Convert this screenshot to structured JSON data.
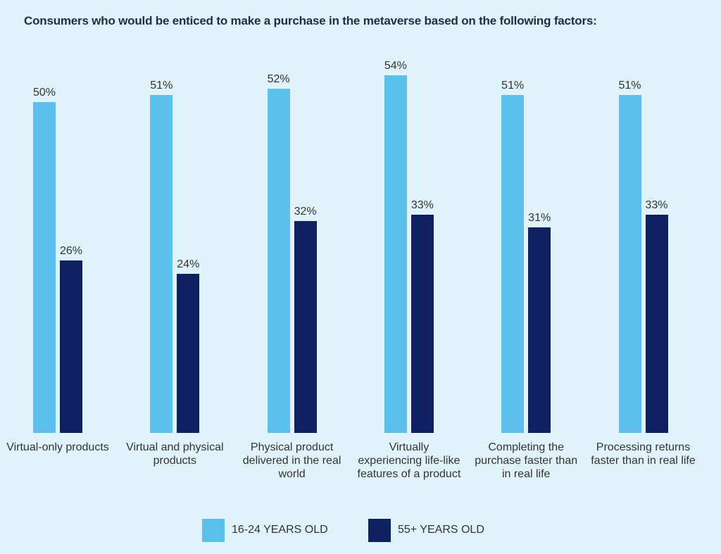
{
  "chart_data": {
    "type": "bar",
    "title": "Consumers who would be enticed to make a purchase in the metaverse based on the following factors:",
    "categories": [
      "Virtual-only products",
      "Virtual and physical products",
      "Physical product delivered in the real world",
      "Virtually experiencing life-like features of a product",
      "Completing the purchase faster than in real life",
      "Processing returns faster than in real life"
    ],
    "series": [
      {
        "name": "16-24 YEARS OLD",
        "color": "#5bc0eb",
        "values": [
          50,
          51,
          52,
          54,
          51,
          51
        ],
        "value_labels": [
          "50%",
          "51%",
          "52%",
          "54%",
          "51%",
          "51%"
        ]
      },
      {
        "name": "55+ YEARS OLD",
        "color": "#0f2160",
        "values": [
          26,
          24,
          32,
          33,
          31,
          33
        ],
        "value_labels": [
          "26%",
          "24%",
          "32%",
          "33%",
          "31%",
          "33%"
        ]
      }
    ]
  }
}
